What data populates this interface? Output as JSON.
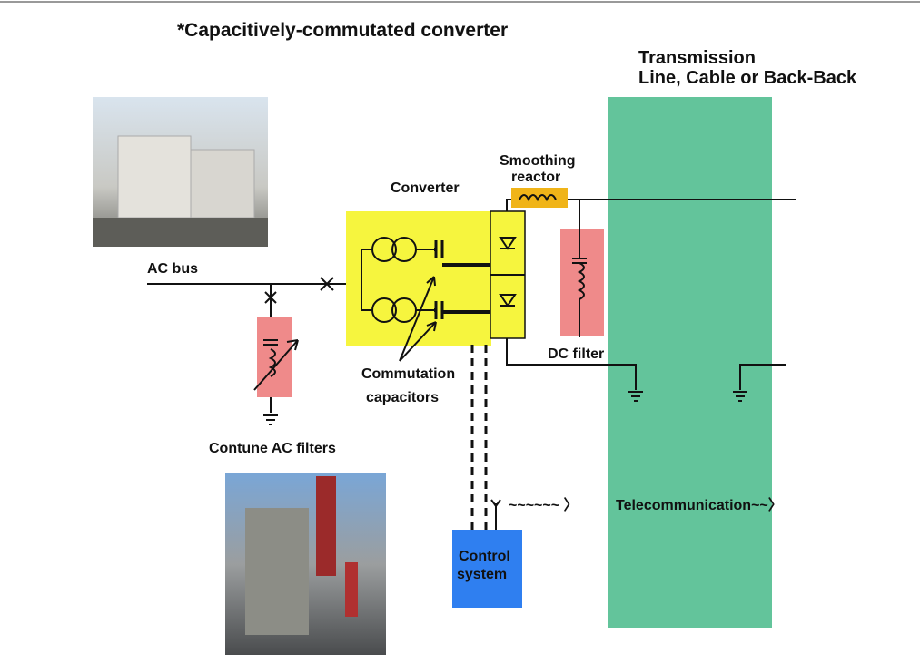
{
  "title": "*Capacitively-commutated converter",
  "labels": {
    "transmission": [
      "Transmission",
      "Line, Cable or Back-Back"
    ],
    "smoothing_reactor": [
      "Smoothing",
      "reactor"
    ],
    "converter": "Converter",
    "ac_bus": "AC bus",
    "dc_filter": "DC filter",
    "commutation_capacitors": [
      "Commutation",
      "capacitors"
    ],
    "ac_filters": "Contune AC filters",
    "control_system": [
      "Control",
      "system"
    ],
    "wave": "~~~~~~ 〉",
    "telecommunication": "Telecommunication~~〉"
  }
}
